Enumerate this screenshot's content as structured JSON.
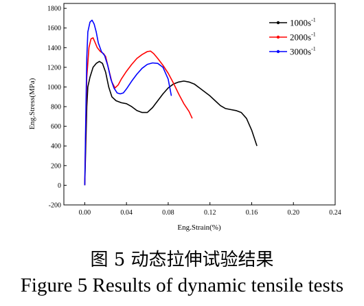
{
  "caption": {
    "chinese": "图 5 动态拉伸试验结果",
    "english": "Figure 5 Results of dynamic tensile tests"
  },
  "chart_data": {
    "type": "line",
    "title": "",
    "xlabel": "Eng.Strain(%)",
    "ylabel": "Eng.Stress(MPa)",
    "xlim": [
      -0.02,
      0.24
    ],
    "ylim": [
      -200,
      1850
    ],
    "xticks": [
      0.0,
      0.04,
      0.08,
      0.12,
      0.16,
      0.2,
      0.24
    ],
    "xtick_labels": [
      "0.00",
      "0.04",
      "0.08",
      "0.12",
      "0.16",
      "0.20",
      "0.24"
    ],
    "yticks": [
      -200,
      0,
      200,
      400,
      600,
      800,
      1000,
      1200,
      1400,
      1600,
      1800
    ],
    "ytick_labels": [
      "-200",
      "0",
      "200",
      "400",
      "600",
      "800",
      "1000",
      "1200",
      "1400",
      "1600",
      "1800"
    ],
    "grid": false,
    "legend_position": "top-right",
    "series": [
      {
        "label_base": "1000s",
        "label_exp": "-1",
        "color": "#000000",
        "x": [
          0,
          0.001,
          0.002,
          0.003,
          0.005,
          0.008,
          0.011,
          0.014,
          0.017,
          0.02,
          0.023,
          0.026,
          0.03,
          0.035,
          0.04,
          0.045,
          0.05,
          0.055,
          0.06,
          0.065,
          0.07,
          0.075,
          0.08,
          0.085,
          0.09,
          0.095,
          0.1,
          0.105,
          0.11,
          0.115,
          0.12,
          0.125,
          0.13,
          0.135,
          0.14,
          0.145,
          0.15,
          0.155,
          0.16,
          0.165
        ],
        "y": [
          0,
          400,
          800,
          1000,
          1100,
          1200,
          1240,
          1260,
          1240,
          1150,
          1000,
          900,
          860,
          840,
          830,
          800,
          760,
          740,
          740,
          790,
          860,
          930,
          990,
          1030,
          1050,
          1060,
          1050,
          1030,
          990,
          950,
          910,
          860,
          810,
          780,
          770,
          760,
          740,
          680,
          560,
          400
        ]
      },
      {
        "label_base": "2000s",
        "label_exp": "-1",
        "color": "#ff0000",
        "x": [
          0,
          0.001,
          0.002,
          0.004,
          0.006,
          0.008,
          0.01,
          0.012,
          0.015,
          0.018,
          0.02,
          0.023,
          0.026,
          0.029,
          0.032,
          0.035,
          0.04,
          0.045,
          0.05,
          0.055,
          0.06,
          0.063,
          0.066,
          0.07,
          0.075,
          0.08,
          0.085,
          0.09,
          0.095,
          0.1,
          0.103
        ],
        "y": [
          0,
          600,
          1100,
          1400,
          1490,
          1500,
          1450,
          1400,
          1360,
          1340,
          1310,
          1180,
          1050,
          990,
          1020,
          1080,
          1160,
          1230,
          1290,
          1330,
          1360,
          1365,
          1340,
          1290,
          1220,
          1140,
          1040,
          930,
          830,
          750,
          680
        ]
      },
      {
        "label_base": "3000s",
        "label_exp": "-1",
        "color": "#0000ff",
        "x": [
          0,
          0.001,
          0.002,
          0.003,
          0.005,
          0.007,
          0.009,
          0.011,
          0.013,
          0.016,
          0.019,
          0.022,
          0.025,
          0.028,
          0.031,
          0.034,
          0.037,
          0.04,
          0.045,
          0.05,
          0.055,
          0.06,
          0.065,
          0.07,
          0.075,
          0.08,
          0.083
        ],
        "y": [
          0,
          700,
          1300,
          1560,
          1660,
          1680,
          1640,
          1560,
          1450,
          1360,
          1320,
          1220,
          1080,
          990,
          940,
          930,
          940,
          980,
          1060,
          1130,
          1190,
          1230,
          1245,
          1240,
          1200,
          1080,
          910
        ]
      }
    ]
  }
}
